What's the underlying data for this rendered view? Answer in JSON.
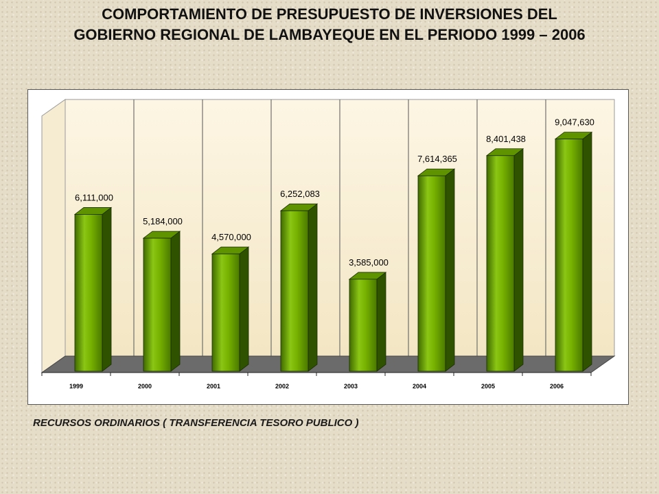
{
  "slide": {
    "title_line1": "COMPORTAMIENTO DE PRESUPUESTO DE INVERSIONES DEL",
    "title_line2": "GOBIERNO REGIONAL DE LAMBAYEQUE  EN EL PERIODO 1999 – 2006",
    "caption": "RECURSOS ORDINARIOS ( TRANSFERENCIA TESORO PUBLICO )"
  },
  "chart_data": {
    "type": "bar",
    "categories": [
      "1999",
      "2000",
      "2001",
      "2002",
      "2003",
      "2004",
      "2005",
      "2006"
    ],
    "values": [
      6111000,
      5184000,
      4570000,
      6252083,
      3585000,
      7614365,
      8401438,
      9047630
    ],
    "data_labels": [
      "6,111,000",
      "5,184,000",
      "4,570,000",
      "6,252,083",
      "3,585,000",
      "7,614,365",
      "8,401,438",
      "9,047,630"
    ],
    "ylim": [
      0,
      10000000
    ],
    "grid": "vertical",
    "legend": "none",
    "bar_color": "#6aa800",
    "title": "",
    "xlabel": "",
    "ylabel": ""
  }
}
